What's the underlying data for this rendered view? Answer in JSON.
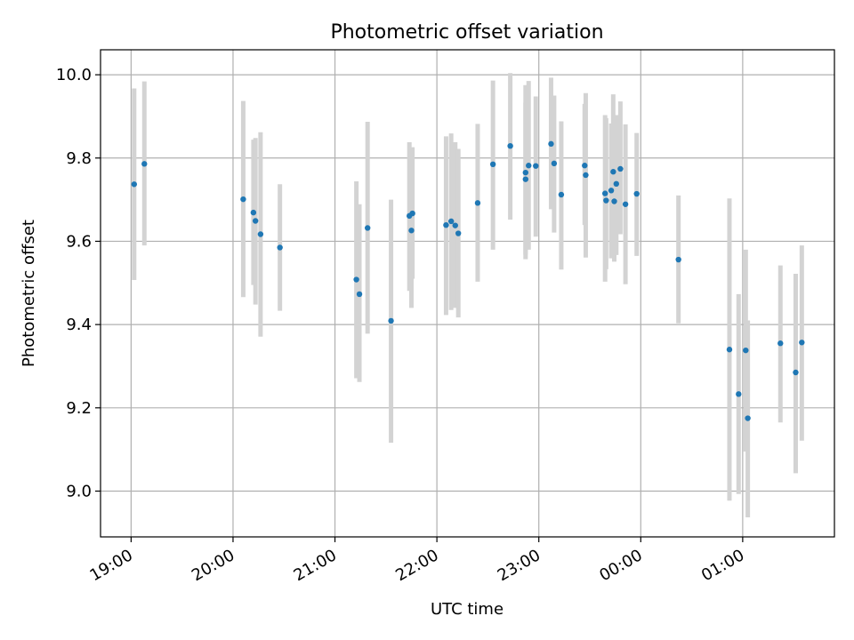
{
  "chart_data": {
    "type": "scatter",
    "title": "Photometric offset variation",
    "xlabel": "UTC time",
    "ylabel": "Photometric offset",
    "x_unit": "hours since 00:00 UTC (negative = previous day)",
    "xlim": [
      -5.3,
      1.9
    ],
    "ylim": [
      8.89,
      10.06
    ],
    "xticks": [
      {
        "value": -5,
        "label": "19:00"
      },
      {
        "value": -4,
        "label": "20:00"
      },
      {
        "value": -3,
        "label": "21:00"
      },
      {
        "value": -2,
        "label": "22:00"
      },
      {
        "value": -1,
        "label": "23:00"
      },
      {
        "value": 0,
        "label": "00:00"
      },
      {
        "value": 1,
        "label": "01:00"
      }
    ],
    "yticks": [
      {
        "value": 9.0,
        "label": "9.0"
      },
      {
        "value": 9.2,
        "label": "9.2"
      },
      {
        "value": 9.4,
        "label": "9.4"
      },
      {
        "value": 9.6,
        "label": "9.6"
      },
      {
        "value": 9.8,
        "label": "9.8"
      },
      {
        "value": 10.0,
        "label": "10.0"
      }
    ],
    "grid": true,
    "marker_color": "#1f77b4",
    "errorbar_color": "#d3d3d3",
    "points": [
      {
        "x": -4.97,
        "y": 9.737,
        "lo": 9.507,
        "hi": 9.967
      },
      {
        "x": -4.87,
        "y": 9.786,
        "lo": 9.59,
        "hi": 9.984
      },
      {
        "x": -3.9,
        "y": 9.701,
        "lo": 9.466,
        "hi": 9.937
      },
      {
        "x": -3.8,
        "y": 9.669,
        "lo": 9.495,
        "hi": 9.844
      },
      {
        "x": -3.78,
        "y": 9.649,
        "lo": 9.448,
        "hi": 9.848
      },
      {
        "x": -3.73,
        "y": 9.617,
        "lo": 9.371,
        "hi": 9.862
      },
      {
        "x": -3.54,
        "y": 9.585,
        "lo": 9.433,
        "hi": 9.737
      },
      {
        "x": -2.79,
        "y": 9.508,
        "lo": 9.271,
        "hi": 9.744
      },
      {
        "x": -2.76,
        "y": 9.473,
        "lo": 9.262,
        "hi": 9.689
      },
      {
        "x": -2.68,
        "y": 9.632,
        "lo": 9.378,
        "hi": 9.887
      },
      {
        "x": -2.45,
        "y": 9.409,
        "lo": 9.116,
        "hi": 9.7
      },
      {
        "x": -2.27,
        "y": 9.661,
        "lo": 9.481,
        "hi": 9.838
      },
      {
        "x": -2.25,
        "y": 9.626,
        "lo": 9.44,
        "hi": 9.811
      },
      {
        "x": -2.24,
        "y": 9.667,
        "lo": 9.51,
        "hi": 9.826
      },
      {
        "x": -1.91,
        "y": 9.639,
        "lo": 9.423,
        "hi": 9.852
      },
      {
        "x": -1.86,
        "y": 9.648,
        "lo": 9.435,
        "hi": 9.859
      },
      {
        "x": -1.82,
        "y": 9.638,
        "lo": 9.44,
        "hi": 9.838
      },
      {
        "x": -1.79,
        "y": 9.619,
        "lo": 9.417,
        "hi": 9.822
      },
      {
        "x": -1.6,
        "y": 9.692,
        "lo": 9.503,
        "hi": 9.882
      },
      {
        "x": -1.45,
        "y": 9.785,
        "lo": 9.58,
        "hi": 9.986
      },
      {
        "x": -1.28,
        "y": 9.829,
        "lo": 9.652,
        "hi": 10.004
      },
      {
        "x": -1.13,
        "y": 9.765,
        "lo": 9.557,
        "hi": 9.975
      },
      {
        "x": -1.13,
        "y": 9.749,
        "lo": 9.568,
        "hi": 9.933
      },
      {
        "x": -1.1,
        "y": 9.782,
        "lo": 9.58,
        "hi": 9.985
      },
      {
        "x": -1.03,
        "y": 9.781,
        "lo": 9.611,
        "hi": 9.948
      },
      {
        "x": -0.88,
        "y": 9.834,
        "lo": 9.677,
        "hi": 9.993
      },
      {
        "x": -0.85,
        "y": 9.787,
        "lo": 9.621,
        "hi": 9.95
      },
      {
        "x": -0.78,
        "y": 9.712,
        "lo": 9.532,
        "hi": 9.888
      },
      {
        "x": -0.55,
        "y": 9.782,
        "lo": 9.639,
        "hi": 9.93
      },
      {
        "x": -0.54,
        "y": 9.759,
        "lo": 9.561,
        "hi": 9.956
      },
      {
        "x": -0.35,
        "y": 9.715,
        "lo": 9.503,
        "hi": 9.903
      },
      {
        "x": -0.34,
        "y": 9.698,
        "lo": 9.533,
        "hi": 9.896
      },
      {
        "x": -0.29,
        "y": 9.722,
        "lo": 9.559,
        "hi": 9.883
      },
      {
        "x": -0.27,
        "y": 9.767,
        "lo": 9.582,
        "hi": 9.953
      },
      {
        "x": -0.26,
        "y": 9.696,
        "lo": 9.551,
        "hi": 9.838
      },
      {
        "x": -0.24,
        "y": 9.738,
        "lo": 9.567,
        "hi": 9.903
      },
      {
        "x": -0.2,
        "y": 9.774,
        "lo": 9.617,
        "hi": 9.936
      },
      {
        "x": -0.15,
        "y": 9.689,
        "lo": 9.497,
        "hi": 9.881
      },
      {
        "x": -0.04,
        "y": 9.714,
        "lo": 9.565,
        "hi": 9.86
      },
      {
        "x": 0.37,
        "y": 9.556,
        "lo": 9.403,
        "hi": 9.71
      },
      {
        "x": 0.87,
        "y": 9.34,
        "lo": 8.977,
        "hi": 9.703
      },
      {
        "x": 0.96,
        "y": 9.233,
        "lo": 8.993,
        "hi": 9.473
      },
      {
        "x": 1.03,
        "y": 9.338,
        "lo": 9.095,
        "hi": 9.58
      },
      {
        "x": 1.05,
        "y": 9.175,
        "lo": 8.937,
        "hi": 9.41
      },
      {
        "x": 1.37,
        "y": 9.355,
        "lo": 9.165,
        "hi": 9.542
      },
      {
        "x": 1.52,
        "y": 9.285,
        "lo": 9.043,
        "hi": 9.522
      },
      {
        "x": 1.58,
        "y": 9.357,
        "lo": 9.121,
        "hi": 9.59
      }
    ]
  }
}
